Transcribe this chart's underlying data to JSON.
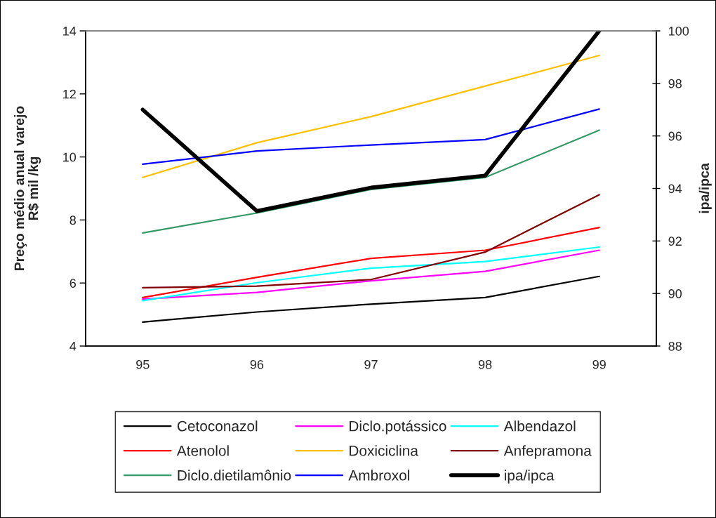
{
  "chart_data": {
    "type": "line",
    "ylabel": "Preço médio anual varejo\nR$ mil /kg",
    "y2label": "ipa/ipca",
    "categories": [
      "95",
      "96",
      "97",
      "98",
      "99"
    ],
    "ylim": [
      4,
      14
    ],
    "yticks": [
      4,
      6,
      8,
      10,
      12,
      14
    ],
    "y2lim": [
      88,
      100
    ],
    "y2ticks": [
      88,
      90,
      92,
      94,
      96,
      98,
      100
    ],
    "legend": "bottom",
    "line_style": "solid",
    "series": [
      {
        "name": "Cetoconazol",
        "color": "#000000",
        "values": [
          4.76,
          5.08,
          5.33,
          5.54,
          6.21
        ]
      },
      {
        "name": "Diclo.potássico",
        "color": "#ff00ff",
        "values": [
          5.49,
          5.7,
          6.07,
          6.37,
          7.04
        ]
      },
      {
        "name": "Albendazol",
        "color": "#00ffff",
        "values": [
          5.44,
          6.01,
          6.47,
          6.68,
          7.14
        ]
      },
      {
        "name": "Atenolol",
        "color": "#ff0000",
        "values": [
          5.54,
          6.18,
          6.78,
          7.04,
          7.76
        ]
      },
      {
        "name": "Doxiciclina",
        "color": "#ffc000",
        "values": [
          9.35,
          10.45,
          11.28,
          12.25,
          13.22
        ]
      },
      {
        "name": "Anfepramona",
        "color": "#800000",
        "values": [
          5.85,
          5.9,
          6.11,
          6.98,
          8.8
        ]
      },
      {
        "name": "Diclo.dietilamônio",
        "color": "#339966",
        "values": [
          7.59,
          8.22,
          8.97,
          9.35,
          10.85
        ]
      },
      {
        "name": "Ambroxol",
        "color": "#0000ff",
        "values": [
          9.77,
          10.19,
          10.38,
          10.55,
          11.52
        ]
      },
      {
        "name": "ipa/ipca",
        "color": "#000000",
        "axis": "y2",
        "values": [
          97.0,
          93.14,
          94.03,
          94.49,
          100.0
        ]
      }
    ]
  }
}
